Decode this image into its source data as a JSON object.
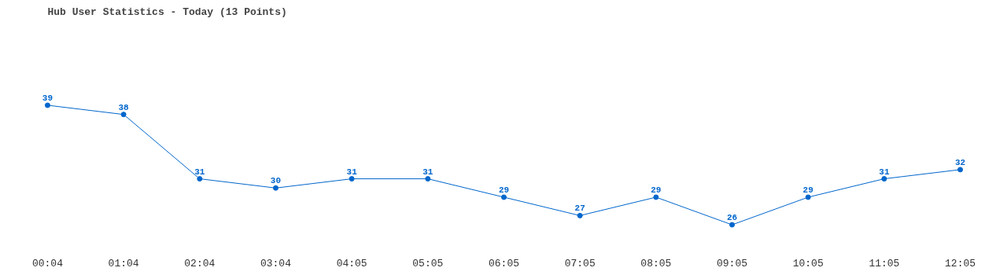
{
  "chart_data": {
    "type": "line",
    "title": "Hub User Statistics - Today (13 Points)",
    "categories": [
      "00:04",
      "01:04",
      "02:04",
      "03:04",
      "04:05",
      "05:05",
      "06:05",
      "07:05",
      "08:05",
      "09:05",
      "10:05",
      "11:05",
      "12:05"
    ],
    "values": [
      39,
      38,
      31,
      30,
      31,
      31,
      29,
      27,
      29,
      26,
      29,
      31,
      32
    ],
    "color": "#0066cc",
    "marker": "circle",
    "data_labels": true
  }
}
